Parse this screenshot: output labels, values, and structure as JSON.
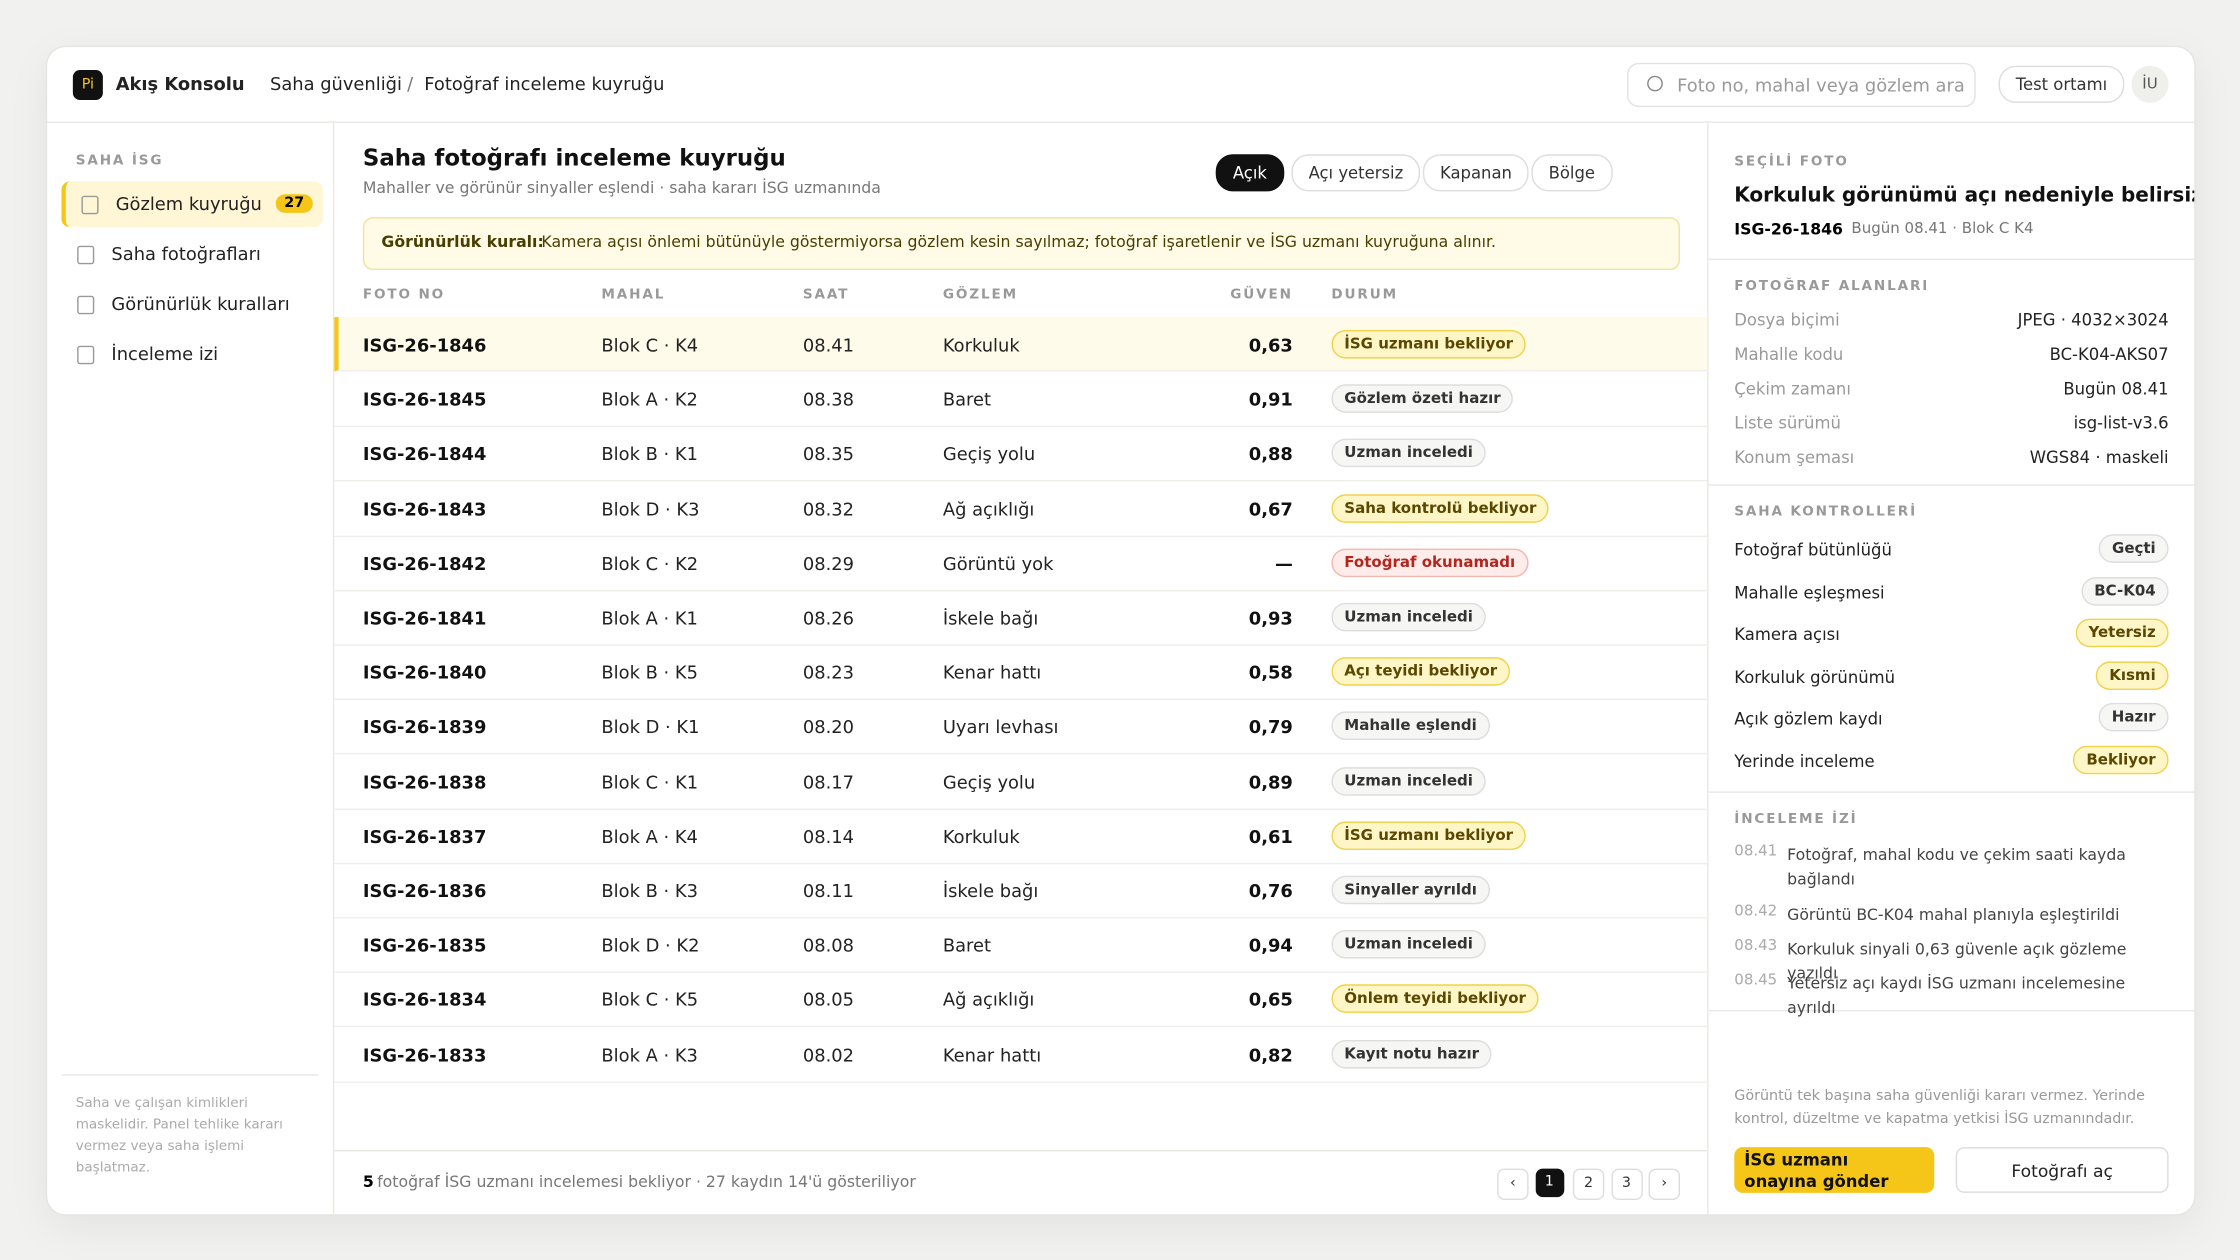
{
  "brand": {
    "logo": "Pi",
    "name": "Akış Konsolu"
  },
  "breadcrumb": {
    "items": [
      "Saha güvenliği",
      "Fotoğraf inceleme kuyruğu"
    ],
    "separator": "/"
  },
  "topbar": {
    "search_placeholder": "Foto no, mahal veya gözlem ara",
    "environment": "Test ortamı",
    "avatar": "İU"
  },
  "sidebar": {
    "section": "SAHA İSG",
    "items": [
      {
        "label": "Gözlem kuyruğu",
        "badge": "27",
        "active": true
      },
      {
        "label": "Saha fotoğrafları"
      },
      {
        "label": "Görünürlük kuralları"
      },
      {
        "label": "İnceleme izi"
      }
    ],
    "note": "Saha ve çalışan kimlikleri maskelidir. Panel tehlike kararı vermez veya saha işlemi başlatmaz."
  },
  "main": {
    "title": "Saha fotoğrafı inceleme kuyruğu",
    "subtitle": "Mahaller ve görünür sinyaller eşlendi · saha kararı İSG uzmanında",
    "filters": [
      {
        "label": "Açık",
        "active": true
      },
      {
        "label": "Açı yetersiz"
      },
      {
        "label": "Kapanan"
      },
      {
        "label": "Bölge"
      }
    ],
    "rule": {
      "label": "Görünürlük kuralı:",
      "text": "Kamera açısı önlemi bütünüyle göstermiyorsa gözlem kesin sayılmaz; fotoğraf işaretlenir ve İSG uzmanı kuyruğuna alınır."
    },
    "table": {
      "columns": [
        "FOTO NO",
        "MAHAL",
        "SAAT",
        "GÖZLEM",
        "GÜVEN",
        "DURUM"
      ],
      "rows": [
        [
          "ISG-26-1846",
          "Blok C · K4",
          "08.41",
          "Korkuluk",
          "0,63",
          {
            "label": "İSG uzmanı bekliyor",
            "tone": "warn"
          }
        ],
        [
          "ISG-26-1845",
          "Blok A · K2",
          "08.38",
          "Baret",
          "0,91",
          {
            "label": "Gözlem özeti hazır",
            "tone": "neutral"
          }
        ],
        [
          "ISG-26-1844",
          "Blok B · K1",
          "08.35",
          "Geçiş yolu",
          "0,88",
          {
            "label": "Uzman inceledi",
            "tone": "neutral"
          }
        ],
        [
          "ISG-26-1843",
          "Blok D · K3",
          "08.32",
          "Ağ açıklığı",
          "0,67",
          {
            "label": "Saha kontrolü bekliyor",
            "tone": "warn"
          }
        ],
        [
          "ISG-26-1842",
          "Blok C · K2",
          "08.29",
          "Görüntü yok",
          "—",
          {
            "label": "Fotoğraf okunamadı",
            "tone": "error"
          }
        ],
        [
          "ISG-26-1841",
          "Blok A · K1",
          "08.26",
          "İskele bağı",
          "0,93",
          {
            "label": "Uzman inceledi",
            "tone": "neutral"
          }
        ],
        [
          "ISG-26-1840",
          "Blok B · K5",
          "08.23",
          "Kenar hattı",
          "0,58",
          {
            "label": "Açı teyidi bekliyor",
            "tone": "warn"
          }
        ],
        [
          "ISG-26-1839",
          "Blok D · K1",
          "08.20",
          "Uyarı levhası",
          "0,79",
          {
            "label": "Mahalle eşlendi",
            "tone": "neutral"
          }
        ],
        [
          "ISG-26-1838",
          "Blok C · K1",
          "08.17",
          "Geçiş yolu",
          "0,89",
          {
            "label": "Uzman inceledi",
            "tone": "neutral"
          }
        ],
        [
          "ISG-26-1837",
          "Blok A · K4",
          "08.14",
          "Korkuluk",
          "0,61",
          {
            "label": "İSG uzmanı bekliyor",
            "tone": "warn"
          }
        ],
        [
          "ISG-26-1836",
          "Blok B · K3",
          "08.11",
          "İskele bağı",
          "0,76",
          {
            "label": "Sinyaller ayrıldı",
            "tone": "neutral"
          }
        ],
        [
          "ISG-26-1835",
          "Blok D · K2",
          "08.08",
          "Baret",
          "0,94",
          {
            "label": "Uzman inceledi",
            "tone": "neutral"
          }
        ],
        [
          "ISG-26-1834",
          "Blok C · K5",
          "08.05",
          "Ağ açıklığı",
          "0,65",
          {
            "label": "Önlem teyidi bekliyor",
            "tone": "warn"
          }
        ],
        [
          "ISG-26-1833",
          "Blok A · K3",
          "08.02",
          "Kenar hattı",
          "0,82",
          {
            "label": "Kayıt notu hazır",
            "tone": "neutral"
          }
        ]
      ]
    },
    "footer": {
      "count": "5",
      "text": "fotoğraf İSG uzmanı incelemesi bekliyor · 27 kaydın 14'ü gösteriliyor",
      "pages": [
        "‹",
        "1",
        "2",
        "3",
        "›"
      ]
    }
  },
  "detail": {
    "label": "SEÇİLİ FOTO",
    "title": "Korkuluk görünümü açı nedeniyle belirsiz",
    "id": "ISG-26-1846",
    "meta": "Bugün 08.41 · Blok C K4",
    "fields_title": "FOTOĞRAF ALANLARI",
    "fields": [
      [
        "Dosya biçimi",
        "JPEG · 4032×3024"
      ],
      [
        "Mahalle kodu",
        "BC-K04-AKS07"
      ],
      [
        "Çekim zamanı",
        "Bugün 08.41"
      ],
      [
        "Liste sürümü",
        "isg-list-v3.6"
      ],
      [
        "Konum şeması",
        "WGS84 · maskeli"
      ]
    ],
    "checks_title": "SAHA KONTROLLERİ",
    "checks": [
      {
        "label": "Fotoğraf bütünlüğü",
        "status": "Geçti",
        "tone": "neutral"
      },
      {
        "label": "Mahalle eşleşmesi",
        "status": "BC-K04",
        "tone": "neutral"
      },
      {
        "label": "Kamera açısı",
        "status": "Yetersiz",
        "tone": "warn"
      },
      {
        "label": "Korkuluk görünümü",
        "status": "Kısmi",
        "tone": "warn"
      },
      {
        "label": "Açık gözlem kaydı",
        "status": "Hazır",
        "tone": "neutral"
      },
      {
        "label": "Yerinde inceleme",
        "status": "Bekliyor",
        "tone": "warn"
      }
    ],
    "log_title": "İNCELEME İZİ",
    "log": [
      {
        "time": "08.41",
        "text": "Fotoğraf, mahal kodu ve çekim saati kayda bağlandı"
      },
      {
        "time": "08.42",
        "text": "Görüntü BC-K04 mahal planıyla eşleştirildi"
      },
      {
        "time": "08.43",
        "text": "Korkuluk sinyali 0,63 güvenle açık gözleme yazıldı"
      },
      {
        "time": "08.45",
        "text": "Yetersiz açı kaydı İSG uzmanı incelemesine ayrıldı"
      }
    ],
    "note": "Görüntü tek başına saha güvenliği kararı vermez. Yerinde kontrol, düzeltme ve kapatma yetkisi İSG uzmanındadır.",
    "buttons": [
      "İSG uzmanı onayına gönder",
      "Fotoğrafı aç"
    ]
  }
}
